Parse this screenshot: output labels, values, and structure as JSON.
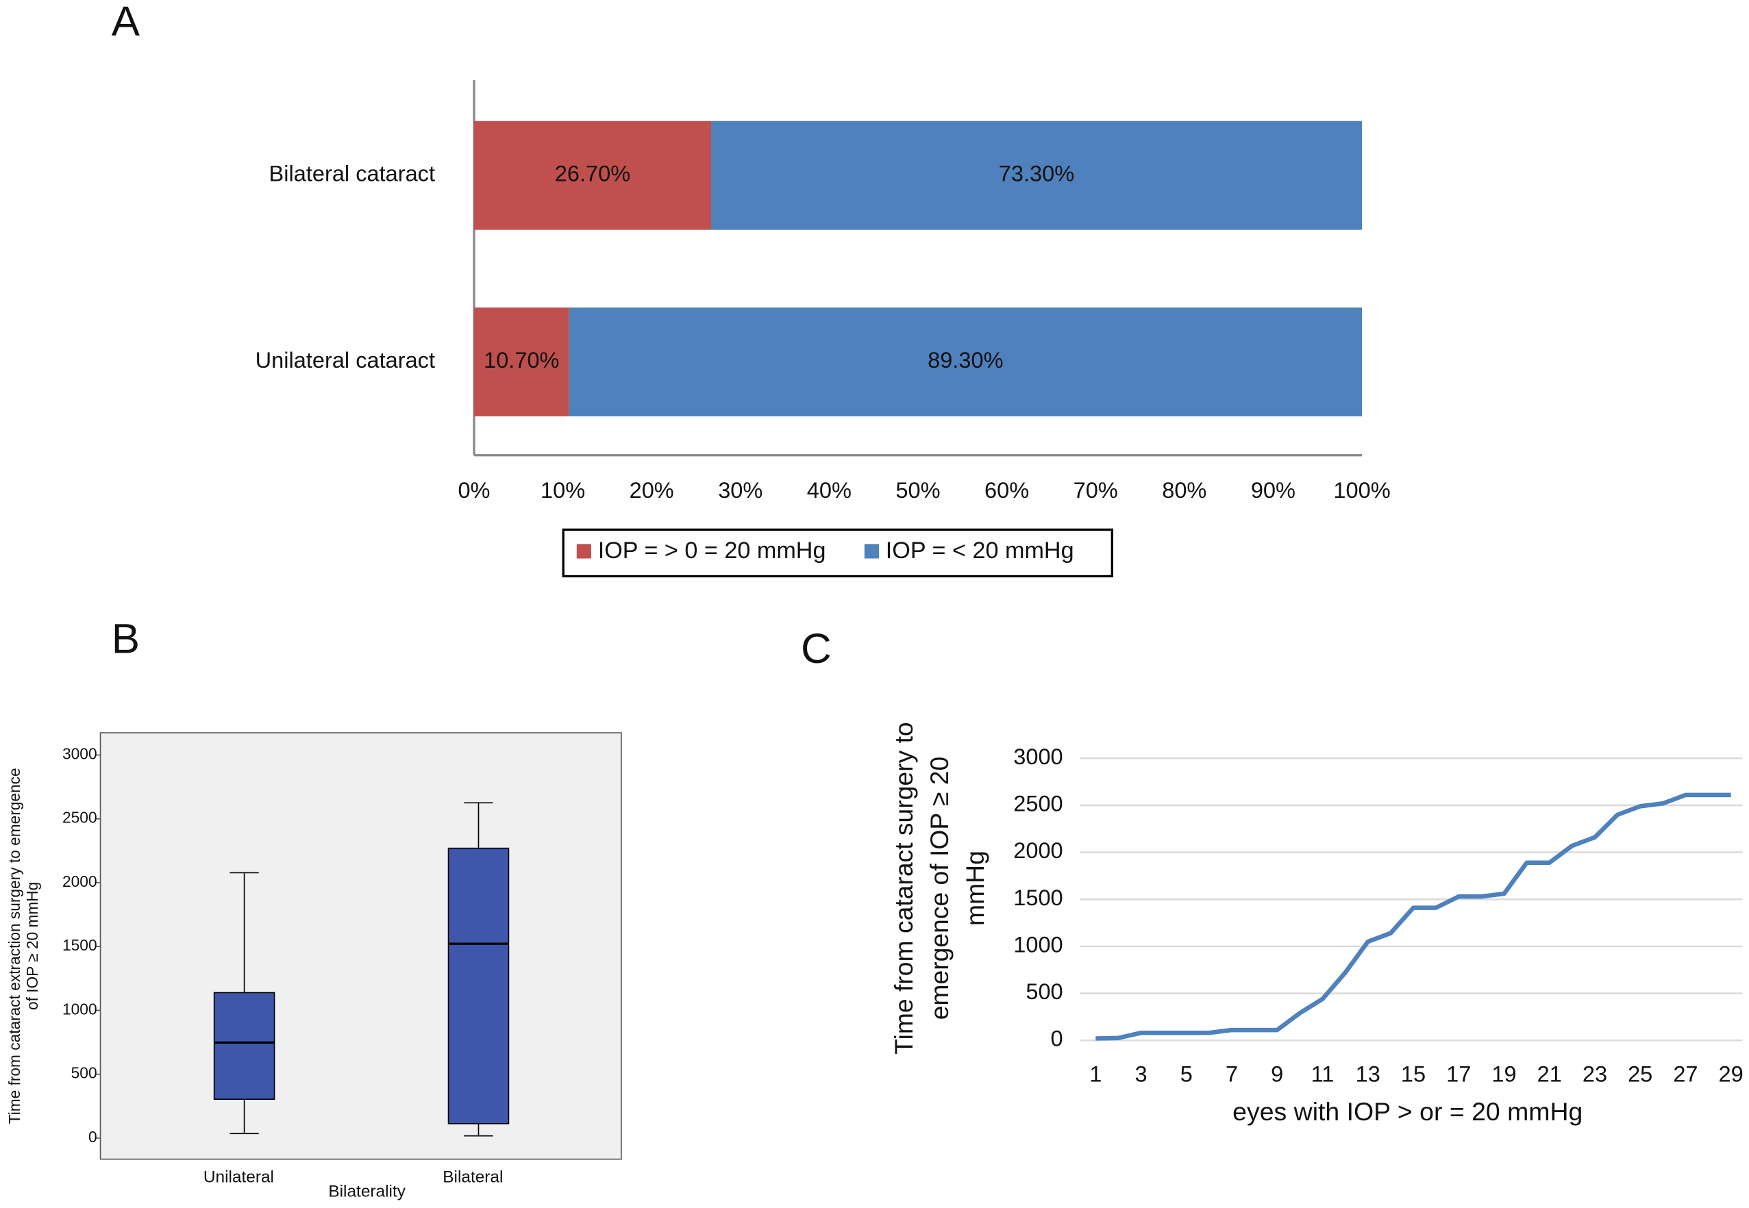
{
  "chart_data": [
    {
      "type": "stacked-barh",
      "panel": "A",
      "categories": [
        "Bilateral cataract",
        "Unilateral cataract"
      ],
      "series": [
        {
          "name": "IOP = > 0 = 20 mmHg",
          "color": "#c0504d",
          "values": [
            26.7,
            10.7
          ],
          "value_labels": [
            "26.70%",
            "10.70%"
          ]
        },
        {
          "name": "IOP = < 20 mmHg",
          "color": "#4f81bd",
          "values": [
            73.3,
            89.3
          ],
          "value_labels": [
            "73.30%",
            "89.30%"
          ]
        }
      ],
      "xlim": [
        0,
        100
      ],
      "xticks": [
        {
          "value": 0,
          "label": "0%"
        },
        {
          "value": 10,
          "label": "10%"
        },
        {
          "value": 20,
          "label": "20%"
        },
        {
          "value": 30,
          "label": "30%"
        },
        {
          "value": 40,
          "label": "40%"
        },
        {
          "value": 50,
          "label": "50%"
        },
        {
          "value": 60,
          "label": "60%"
        },
        {
          "value": 70,
          "label": "70%"
        },
        {
          "value": 80,
          "label": "80%"
        },
        {
          "value": 90,
          "label": "90%"
        },
        {
          "value": 100,
          "label": "100%"
        }
      ],
      "legend": "bottom"
    },
    {
      "type": "box",
      "panel": "B",
      "categories": [
        "Unilateral",
        "Bilateral"
      ],
      "boxes": [
        {
          "low": 35,
          "q1": 304,
          "median": 748,
          "q3": 1139,
          "high": 2078
        },
        {
          "low": 17,
          "q1": 113,
          "median": 1522,
          "q3": 2270,
          "high": 2626
        }
      ],
      "color": "#3f57ab",
      "xlabel": "Bilaterality",
      "ylabel": [
        "Time from cataract extraction surgery to emergence",
        "of IOP ≥ 20 mmHg"
      ],
      "ylim": [
        -165,
        3174
      ],
      "yticks": [
        0,
        500,
        1000,
        1500,
        2000,
        2500,
        3000
      ]
    },
    {
      "type": "line",
      "panel": "C",
      "x": [
        1,
        2,
        3,
        4,
        5,
        6,
        7,
        8,
        9,
        10,
        11,
        12,
        13,
        14,
        15,
        16,
        17,
        18,
        19,
        20,
        21,
        22,
        23,
        24,
        25,
        26,
        27,
        28,
        29
      ],
      "series": [
        {
          "name": null,
          "color": "#4f81bd",
          "values": [
            20,
            25,
            80,
            80,
            80,
            80,
            110,
            110,
            110,
            290,
            440,
            720,
            1050,
            1140,
            1410,
            1410,
            1530,
            1530,
            1560,
            1890,
            1890,
            2070,
            2160,
            2400,
            2490,
            2520,
            2610,
            2610,
            2610
          ]
        }
      ],
      "xlabel": "eyes with IOP > or = 20 mmHg",
      "ylabel": [
        "Time from cataract surgery to",
        "emergence of IOP ≥ 20",
        "mmHg"
      ],
      "xlim": [
        0.3,
        29.5
      ],
      "xticks": [
        1,
        3,
        5,
        7,
        9,
        11,
        13,
        15,
        17,
        19,
        21,
        23,
        25,
        27,
        29
      ],
      "ylim": [
        0,
        3000
      ],
      "yticks": [
        0,
        500,
        1000,
        1500,
        2000,
        2500,
        3000
      ],
      "grid": true
    }
  ]
}
